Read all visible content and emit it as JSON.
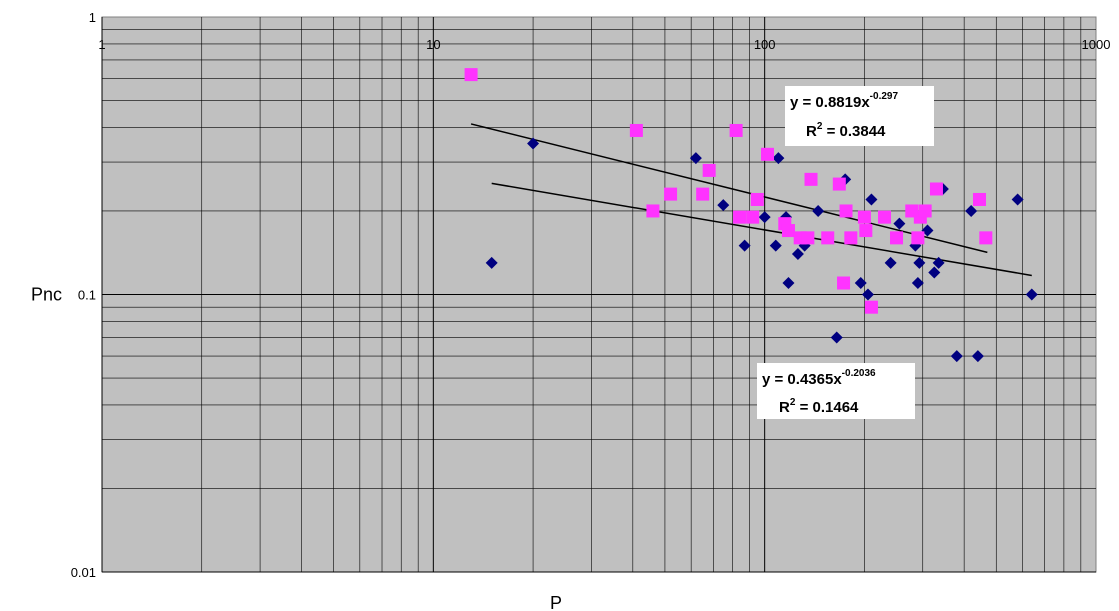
{
  "chart_data": {
    "type": "scatter",
    "xlabel": "P",
    "ylabel": "Pnc",
    "xscale": "log",
    "yscale": "log",
    "xlim": [
      1,
      1000
    ],
    "ylim": [
      0.01,
      1
    ],
    "x_ticks": [
      "1",
      "10",
      "100",
      "1000"
    ],
    "y_ticks": [
      "1",
      "0.1",
      "0.01"
    ],
    "grid": true,
    "legend": "none",
    "colors": {
      "plot_background": "#c0c0c0",
      "series_1": "#000080",
      "series_2": "#ff33ff",
      "trendline": "#000000"
    },
    "series": [
      {
        "marker": "diamond",
        "points": [
          [
            15,
            0.13
          ],
          [
            20,
            0.35
          ],
          [
            62,
            0.31
          ],
          [
            75,
            0.21
          ],
          [
            87,
            0.15
          ],
          [
            100,
            0.19
          ],
          [
            108,
            0.15
          ],
          [
            110,
            0.31
          ],
          [
            116,
            0.19
          ],
          [
            118,
            0.11
          ],
          [
            126,
            0.14
          ],
          [
            132,
            0.15
          ],
          [
            145,
            0.2
          ],
          [
            165,
            0.07
          ],
          [
            175,
            0.26
          ],
          [
            195,
            0.11
          ],
          [
            205,
            0.1
          ],
          [
            210,
            0.22
          ],
          [
            240,
            0.13
          ],
          [
            255,
            0.18
          ],
          [
            285,
            0.15
          ],
          [
            290,
            0.11
          ],
          [
            293,
            0.13
          ],
          [
            310,
            0.17
          ],
          [
            325,
            0.12
          ],
          [
            335,
            0.13
          ],
          [
            345,
            0.24
          ],
          [
            380,
            0.06
          ],
          [
            420,
            0.2
          ],
          [
            440,
            0.06
          ],
          [
            580,
            0.22
          ],
          [
            640,
            0.1
          ]
        ],
        "trendline": {
          "coef": 0.4365,
          "exp": -0.2036,
          "x_range": [
            15,
            640
          ]
        }
      },
      {
        "marker": "square",
        "points": [
          [
            13,
            0.62
          ],
          [
            41,
            0.39
          ],
          [
            46,
            0.2
          ],
          [
            52,
            0.23
          ],
          [
            65,
            0.23
          ],
          [
            68,
            0.28
          ],
          [
            82,
            0.39
          ],
          [
            84,
            0.19
          ],
          [
            92,
            0.19
          ],
          [
            95,
            0.22
          ],
          [
            102,
            0.32
          ],
          [
            115,
            0.18
          ],
          [
            118,
            0.17
          ],
          [
            128,
            0.16
          ],
          [
            135,
            0.16
          ],
          [
            138,
            0.26
          ],
          [
            155,
            0.16
          ],
          [
            168,
            0.25
          ],
          [
            173,
            0.11
          ],
          [
            176,
            0.2
          ],
          [
            182,
            0.16
          ],
          [
            200,
            0.19
          ],
          [
            202,
            0.17
          ],
          [
            210,
            0.09
          ],
          [
            230,
            0.19
          ],
          [
            250,
            0.16
          ],
          [
            278,
            0.2
          ],
          [
            290,
            0.16
          ],
          [
            295,
            0.19
          ],
          [
            305,
            0.2
          ],
          [
            330,
            0.24
          ],
          [
            445,
            0.22
          ],
          [
            465,
            0.16
          ]
        ],
        "trendline": {
          "coef": 0.8819,
          "exp": -0.297,
          "x_range": [
            13,
            470
          ]
        }
      }
    ],
    "annotations": [
      {
        "line1_prefix": "y = 0.8819x",
        "line1_exp": "-0.297",
        "line2_prefix": "R",
        "line2_sup": "2",
        "line2_suffix": " = 0.3844"
      },
      {
        "line1_prefix": "y = 0.4365x",
        "line1_exp": "-0.2036",
        "line2_prefix": "R",
        "line2_sup": "2",
        "line2_suffix": " = 0.1464"
      }
    ]
  }
}
